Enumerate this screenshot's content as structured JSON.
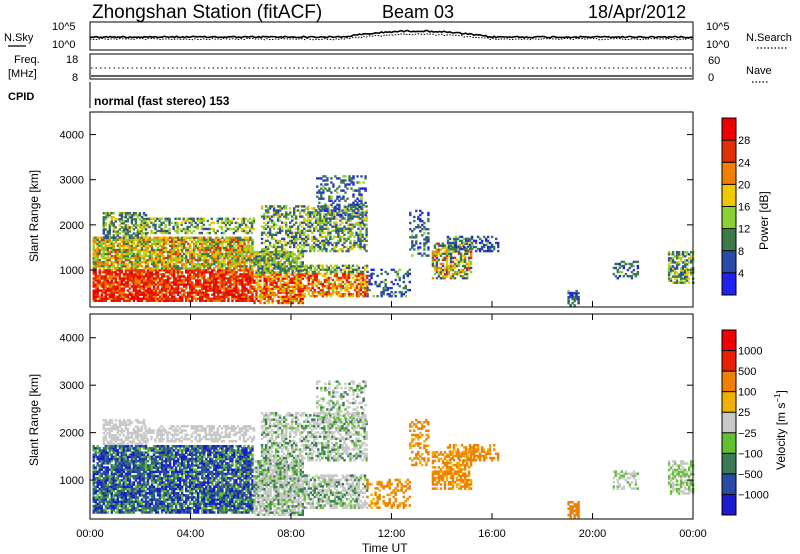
{
  "header": {
    "station": "Zhongshan Station (fitACF)",
    "beam": "Beam 03",
    "date": "18/Apr/2012"
  },
  "sky_panel": {
    "left_label": "N.Sky",
    "left_ticks": [
      "10^5",
      "10^0"
    ],
    "right_ticks": [
      "10^5",
      "10^0"
    ],
    "right_label": "N.Search"
  },
  "freq_panel": {
    "left_label_1": "Freq.",
    "left_label_2": "[MHz]",
    "left_ticks": [
      "18",
      "8"
    ],
    "right_ticks": [
      "60",
      "0"
    ],
    "right_label": "Nave"
  },
  "cpid": {
    "label": "CPID",
    "value": "normal (fast stereo) 153"
  },
  "chart_data": [
    {
      "type": "heatmap",
      "quantity": "Power",
      "ylabel": "Slant Range [km]",
      "xlabel": "Time UT",
      "x_range_hours": [
        0,
        24
      ],
      "ylim": [
        180,
        4500
      ],
      "yticks": [
        "1000",
        "2000",
        "3000",
        "4000"
      ],
      "xticks": [
        "00:00",
        "04:00",
        "08:00",
        "12:00",
        "16:00",
        "20:00",
        "00:00"
      ],
      "colorbar": {
        "label": "Power [dB]",
        "ticks": [
          "4",
          "8",
          "12",
          "16",
          "20",
          "24",
          "28"
        ],
        "range": [
          0,
          30
        ],
        "colors": [
          "#2222ee",
          "#2a4aa8",
          "#3c7a4a",
          "#8ad030",
          "#f0c800",
          "#f28000",
          "#e03000",
          "#f00000"
        ]
      }
    },
    {
      "type": "heatmap",
      "quantity": "Velocity",
      "ylabel": "Slant Range [km]",
      "xlabel": "Time UT",
      "x_range_hours": [
        0,
        24
      ],
      "ylim": [
        180,
        4500
      ],
      "yticks": [
        "1000",
        "2000",
        "3000",
        "4000"
      ],
      "xticks": [
        "00:00",
        "04:00",
        "08:00",
        "12:00",
        "16:00",
        "20:00",
        "00:00"
      ],
      "colorbar": {
        "label": "Velocity [m s^-1]",
        "ticks": [
          "1000",
          "500",
          "100",
          "25",
          "−25",
          "−100",
          "−500",
          "−1000"
        ],
        "colors": [
          "#1a1ad0",
          "#2a4aa8",
          "#3a7a55",
          "#60c030",
          "#c8c8c8",
          "#f0b000",
          "#f08000",
          "#e82000",
          "#f00000"
        ]
      }
    }
  ]
}
